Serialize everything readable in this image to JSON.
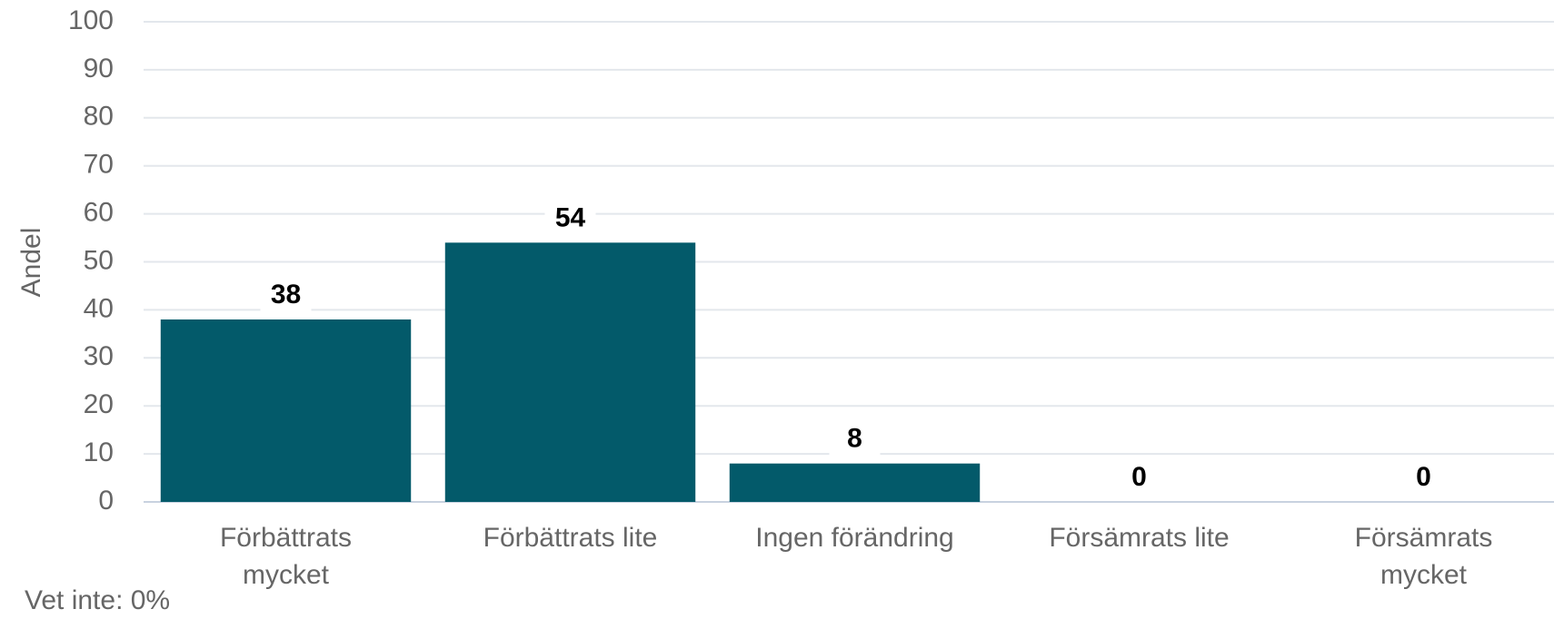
{
  "chart_data": {
    "type": "bar",
    "categories": [
      "Förbättrats mycket",
      "Förbättrats lite",
      "Ingen förändring",
      "Försämrats lite",
      "Försämrats mycket"
    ],
    "values": [
      38,
      54,
      8,
      0,
      0
    ],
    "color": "#035a6a",
    "ylabel": "Andel",
    "annotation": "Vet inte: 0%",
    "ylim": [
      0,
      100
    ],
    "yticks": [
      0,
      10,
      20,
      30,
      40,
      50,
      60,
      70,
      80,
      90,
      100
    ],
    "grid": true
  }
}
